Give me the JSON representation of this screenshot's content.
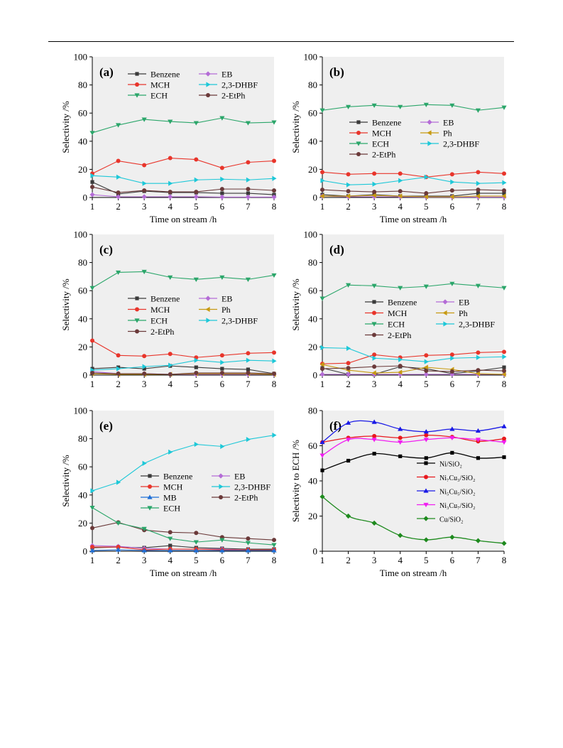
{
  "chart_data": [
    {
      "type": "line",
      "panel_label": "(a)",
      "xlabel": "Time on stream /h",
      "ylabel": "Selectivity /%",
      "x": [
        1,
        2,
        3,
        4,
        5,
        6,
        7,
        8
      ],
      "xlim": [
        1,
        8
      ],
      "ylim": [
        0,
        100
      ],
      "yticks": [
        0,
        20,
        40,
        60,
        80,
        100
      ],
      "legend_columns": 2,
      "series": [
        {
          "name": "Benzene",
          "color": "#3a3a3a",
          "marker": "square",
          "values": [
            11,
            2.5,
            4.5,
            3.5,
            3.5,
            3,
            3,
            2
          ]
        },
        {
          "name": "EB",
          "color": "#b46cd6",
          "marker": "diamond",
          "values": [
            2,
            0.5,
            0.5,
            0.5,
            0.5,
            0.3,
            0.3,
            0.3
          ]
        },
        {
          "name": "MCH",
          "color": "#e8352b",
          "marker": "circle",
          "values": [
            17,
            26,
            23,
            28,
            27,
            21,
            25,
            26
          ]
        },
        {
          "name": "2,3-DHBF",
          "color": "#1ec8d8",
          "marker": "tri-right",
          "values": [
            15.5,
            14.5,
            10,
            10,
            12.5,
            13,
            12.5,
            13.5
          ]
        },
        {
          "name": "ECH",
          "color": "#2ba66a",
          "marker": "tri-down",
          "values": [
            46,
            51.5,
            55.5,
            54,
            53,
            56.5,
            53,
            53.5
          ]
        },
        {
          "name": "2-EtPh",
          "color": "#6b3a3a",
          "marker": "circle",
          "values": [
            7.5,
            3.5,
            5,
            4,
            4,
            6,
            6,
            5
          ]
        }
      ]
    },
    {
      "type": "line",
      "panel_label": "(b)",
      "xlabel": "Time on stream /h",
      "ylabel": "Selectivity /%",
      "x": [
        1,
        2,
        3,
        4,
        5,
        6,
        7,
        8
      ],
      "xlim": [
        1,
        8
      ],
      "ylim": [
        0,
        100
      ],
      "yticks": [
        0,
        20,
        40,
        60,
        80,
        100
      ],
      "legend_columns": 2,
      "series": [
        {
          "name": "Benzene",
          "color": "#3a3a3a",
          "marker": "square",
          "values": [
            2,
            1,
            2,
            1,
            1,
            1,
            3,
            3
          ]
        },
        {
          "name": "EB",
          "color": "#b46cd6",
          "marker": "diamond",
          "values": [
            1,
            0.5,
            0.5,
            0.5,
            0.3,
            0.3,
            0.3,
            0.3
          ]
        },
        {
          "name": "MCH",
          "color": "#e8352b",
          "marker": "circle",
          "values": [
            18,
            16.5,
            17,
            17,
            14.5,
            16.5,
            18,
            17
          ]
        },
        {
          "name": "Ph",
          "color": "#c79a12",
          "marker": "tri-left",
          "values": [
            1,
            1,
            1.5,
            1,
            0.5,
            0.5,
            1,
            1
          ]
        },
        {
          "name": "ECH",
          "color": "#2ba66a",
          "marker": "tri-down",
          "values": [
            62,
            64.5,
            65.5,
            64.5,
            66,
            65.5,
            62,
            64
          ]
        },
        {
          "name": "2,3-DHBF",
          "color": "#1ec8d8",
          "marker": "tri-right",
          "values": [
            12,
            9,
            9.5,
            12,
            14.5,
            11,
            10,
            10.5
          ]
        },
        {
          "name": "2-EtPh",
          "color": "#6b3a3a",
          "marker": "circle",
          "values": [
            5.5,
            4.5,
            4,
            4.5,
            3,
            5,
            5.5,
            5
          ]
        }
      ]
    },
    {
      "type": "line",
      "panel_label": "(c)",
      "xlabel": "",
      "ylabel": "Selectivity /%",
      "x": [
        1,
        2,
        3,
        4,
        5,
        6,
        7,
        8
      ],
      "xlim": [
        1,
        8
      ],
      "ylim": [
        0,
        100
      ],
      "yticks": [
        0,
        20,
        40,
        60,
        80,
        100
      ],
      "legend_columns": 2,
      "series": [
        {
          "name": "Benzene",
          "color": "#3a3a3a",
          "marker": "square",
          "values": [
            4.5,
            5.5,
            4.5,
            6.5,
            5.5,
            4.5,
            4,
            1
          ]
        },
        {
          "name": "EB",
          "color": "#b46cd6",
          "marker": "diamond",
          "values": [
            2.5,
            1,
            1,
            0.5,
            0.5,
            0.5,
            0.5,
            0.5
          ]
        },
        {
          "name": "MCH",
          "color": "#e8352b",
          "marker": "circle",
          "values": [
            24.5,
            14,
            13.5,
            15,
            12.5,
            14,
            15.5,
            16
          ]
        },
        {
          "name": "Ph",
          "color": "#c79a12",
          "marker": "tri-left",
          "values": [
            1,
            0.5,
            0.5,
            0.5,
            1,
            1,
            1,
            0.5
          ]
        },
        {
          "name": "ECH",
          "color": "#2ba66a",
          "marker": "tri-down",
          "values": [
            62,
            73,
            73.5,
            69.5,
            68,
            69.5,
            68,
            71
          ]
        },
        {
          "name": "2,3-DHBF",
          "color": "#1ec8d8",
          "marker": "tri-right",
          "values": [
            3.5,
            4.5,
            6,
            7,
            10.5,
            9,
            10.5,
            10
          ]
        },
        {
          "name": "2-EtPh",
          "color": "#6b3a3a",
          "marker": "circle",
          "values": [
            1.5,
            1,
            1,
            0.5,
            1.5,
            1.5,
            1.5,
            1
          ]
        }
      ]
    },
    {
      "type": "line",
      "panel_label": "(d)",
      "xlabel": "",
      "ylabel": "Selectivity /%",
      "x": [
        1,
        2,
        3,
        4,
        5,
        6,
        7,
        8
      ],
      "xlim": [
        1,
        8
      ],
      "ylim": [
        0,
        100
      ],
      "yticks": [
        0,
        20,
        40,
        60,
        80,
        100
      ],
      "legend_columns": 2,
      "series": [
        {
          "name": "Benzene",
          "color": "#3a3a3a",
          "marker": "square",
          "values": [
            5,
            0.5,
            0.5,
            6,
            4.5,
            1,
            3,
            5.5
          ]
        },
        {
          "name": "EB",
          "color": "#b46cd6",
          "marker": "diamond",
          "values": [
            0.5,
            0.5,
            0.5,
            0.5,
            0.5,
            0.5,
            0.5,
            0.5
          ]
        },
        {
          "name": "MCH",
          "color": "#e8352b",
          "marker": "circle",
          "values": [
            8,
            8.5,
            14.5,
            12.5,
            14,
            14.5,
            16,
            16.5
          ]
        },
        {
          "name": "Ph",
          "color": "#c79a12",
          "marker": "tri-left",
          "values": [
            7.5,
            3.5,
            1.5,
            2,
            5.5,
            4,
            1,
            0.5
          ]
        },
        {
          "name": "ECH",
          "color": "#2ba66a",
          "marker": "tri-down",
          "values": [
            54.5,
            64,
            63.5,
            62,
            63,
            65,
            63.5,
            62
          ]
        },
        {
          "name": "2,3-DHBF",
          "color": "#1ec8d8",
          "marker": "tri-right",
          "values": [
            19.5,
            19,
            12,
            11,
            9.5,
            12,
            12.5,
            13
          ]
        },
        {
          "name": "2-EtPh",
          "color": "#6b3a3a",
          "marker": "circle",
          "values": [
            4.5,
            5,
            6,
            6.5,
            3,
            2.5,
            3.5,
            3
          ]
        }
      ]
    },
    {
      "type": "line",
      "panel_label": "(e)",
      "xlabel": "Time on stream /h",
      "ylabel": "Selectivity /%",
      "x": [
        1,
        2,
        3,
        4,
        5,
        6,
        7,
        8
      ],
      "xlim": [
        1,
        8
      ],
      "ylim": [
        0,
        100
      ],
      "yticks": [
        0,
        20,
        40,
        60,
        80,
        100
      ],
      "legend_columns": 2,
      "series": [
        {
          "name": "Benzene",
          "color": "#3a3a3a",
          "marker": "square",
          "values": [
            2.5,
            3,
            2.5,
            4,
            2.5,
            2,
            1.5,
            1.5
          ]
        },
        {
          "name": "EB",
          "color": "#b46cd6",
          "marker": "diamond",
          "values": [
            4,
            3.5,
            2,
            1.5,
            1.5,
            1.5,
            1,
            1
          ]
        },
        {
          "name": "MCH",
          "color": "#e8352b",
          "marker": "circle",
          "values": [
            3,
            3,
            1,
            1.5,
            1.5,
            1,
            1,
            1
          ]
        },
        {
          "name": "2,3-DHBF",
          "color": "#1ec8d8",
          "marker": "tri-right",
          "values": [
            43,
            49,
            62.5,
            70.5,
            76,
            74.5,
            79.5,
            82.5
          ]
        },
        {
          "name": "MB",
          "color": "#1f6fd6",
          "marker": "tri-up",
          "values": [
            0.5,
            1,
            0.5,
            0.5,
            0.5,
            0.5,
            0.5,
            0.5
          ]
        },
        {
          "name": "2-EtPh",
          "color": "#6b3a3a",
          "marker": "circle",
          "values": [
            16.5,
            20.5,
            15,
            13.5,
            13,
            10,
            9,
            8
          ]
        },
        {
          "name": "ECH",
          "color": "#2ba66a",
          "marker": "tri-down",
          "values": [
            31,
            20,
            16,
            9,
            6.5,
            8,
            6,
            4.5
          ]
        }
      ]
    },
    {
      "type": "line",
      "panel_label": "(f)",
      "xlabel": "Time on stream /h",
      "ylabel": "Selectivity to ECH /%",
      "x": [
        1,
        2,
        3,
        4,
        5,
        6,
        7,
        8
      ],
      "xlim": [
        1,
        8
      ],
      "ylim": [
        0,
        80
      ],
      "yticks": [
        0,
        20,
        40,
        60,
        80
      ],
      "smooth": true,
      "legend_columns": 1,
      "series": [
        {
          "name": "Ni/SiO₂",
          "color": "#000000",
          "marker": "square",
          "values": [
            46,
            51.5,
            55.5,
            54,
            53,
            56,
            53,
            53.5
          ]
        },
        {
          "name": "Ni₇Cu₃/SiO₂",
          "color": "#e8191e",
          "marker": "circle",
          "values": [
            62,
            64.5,
            65.5,
            64.5,
            66,
            65,
            62.5,
            64
          ]
        },
        {
          "name": "Ni₅Cu₅/SiO₂",
          "color": "#1a1ae6",
          "marker": "tri-up",
          "values": [
            62,
            73,
            73.5,
            69.5,
            68,
            69.5,
            68.5,
            71
          ]
        },
        {
          "name": "Ni₃Cu₇/SiO₂",
          "color": "#f01ef0",
          "marker": "tri-down",
          "values": [
            54.5,
            63.5,
            63.5,
            62,
            63.5,
            64.5,
            63.5,
            62
          ]
        },
        {
          "name": "Cu/SiO₂",
          "color": "#1e8a1e",
          "marker": "diamond",
          "values": [
            31,
            20,
            16,
            9,
            6.5,
            8,
            6,
            4.5
          ]
        }
      ]
    }
  ]
}
